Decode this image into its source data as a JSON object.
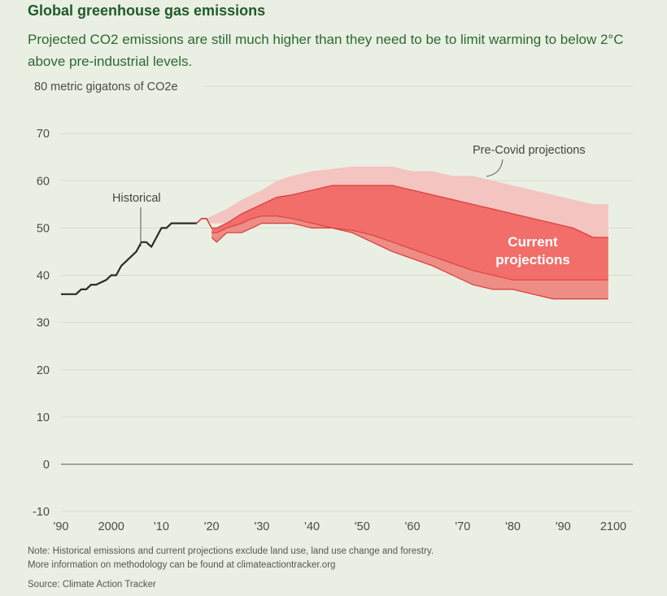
{
  "header": {
    "title": "Global greenhouse gas emissions",
    "subtitle": "Projected CO2 emissions are still much higher than they need to be to limit warming to below 2°C above pre-industrial levels."
  },
  "footer": {
    "note_line1": "Note: Historical emissions and current projections exclude land use, land use change and forestry.",
    "note_line2": "More information on methodology can be found at climateactiontracker.org",
    "source": "Source: Climate Action Tracker"
  },
  "colors": {
    "historical": "#2b2b2b",
    "precovid_band": "#f3c4c0",
    "current_outer_band": "#ee8c86",
    "current_inner_band": "#f26e6a",
    "band_edge": "#d83a38",
    "background": "#eaefe3"
  },
  "chart_data": {
    "type": "area",
    "ylabel": "80 metric gigatons of CO2e",
    "ylim": [
      -10,
      80
    ],
    "xlim": [
      1990,
      2100
    ],
    "y_ticks": [
      -10,
      0,
      10,
      20,
      30,
      40,
      50,
      60,
      70,
      80
    ],
    "y_tick_labels": [
      "-10",
      "0",
      "10",
      "20",
      "30",
      "40",
      "50",
      "60",
      "70",
      "80 metric gigatons of CO2e"
    ],
    "x_ticks": [
      1990,
      2000,
      2010,
      2020,
      2030,
      2040,
      2050,
      2060,
      2070,
      2080,
      2090,
      2100
    ],
    "x_tick_labels": [
      "'90",
      "2000",
      "'10",
      "'20",
      "'30",
      "'40",
      "'50",
      "'60",
      "'70",
      "'80",
      "'90",
      "2100"
    ],
    "grid": true,
    "annotations": {
      "historical": "Historical",
      "precovid": "Pre-Covid projections",
      "current_line1": "Current",
      "current_line2": "projections"
    },
    "historical": {
      "x": [
        1990,
        1993,
        1994,
        1995,
        1996,
        1997,
        1999,
        2000,
        2001,
        2002,
        2004,
        2005,
        2006,
        2007,
        2008,
        2009,
        2010,
        2011,
        2012,
        2013,
        2014,
        2015,
        2016,
        2017
      ],
      "y": [
        36,
        36,
        37,
        37,
        38,
        38,
        39,
        40,
        40,
        42,
        44,
        45,
        47,
        47,
        46,
        48,
        50,
        50,
        51,
        51,
        51,
        51,
        51,
        51
      ]
    },
    "recent_line": {
      "x": [
        2017,
        2018,
        2019,
        2020
      ],
      "y": [
        51,
        52,
        52,
        50
      ]
    },
    "precovid_projections": {
      "x": [
        2019,
        2020,
        2023,
        2026,
        2028,
        2030,
        2033,
        2036,
        2040,
        2044,
        2048,
        2052,
        2056,
        2060,
        2064,
        2068,
        2072,
        2076,
        2080,
        2084,
        2088,
        2092,
        2096,
        2099
      ],
      "high": [
        52,
        52.5,
        54,
        56,
        57,
        58,
        60,
        61,
        62,
        62.5,
        63,
        63,
        63,
        62,
        62,
        61,
        61,
        60,
        59,
        58,
        57,
        56,
        55,
        55
      ],
      "low": [
        52,
        51,
        51,
        52,
        53,
        54,
        54,
        54,
        53,
        53,
        52,
        51,
        50,
        48,
        46,
        44,
        42,
        41,
        40,
        39,
        39,
        39,
        39,
        39
      ]
    },
    "current_projections_upper_band": {
      "x": [
        2020,
        2021,
        2023,
        2026,
        2028,
        2030,
        2033,
        2036,
        2040,
        2044,
        2048,
        2052,
        2056,
        2060,
        2064,
        2068,
        2072,
        2076,
        2080,
        2084,
        2088,
        2092,
        2096,
        2099
      ],
      "high": [
        50,
        50,
        51,
        53,
        54,
        55,
        56.5,
        57,
        58,
        59,
        59,
        59,
        59,
        58,
        57,
        56,
        55,
        54,
        53,
        52,
        51,
        50,
        48,
        48
      ],
      "low": [
        49,
        49,
        50,
        51,
        52,
        52.5,
        52.5,
        52,
        51,
        50,
        49.5,
        48.5,
        47,
        45.5,
        44,
        42.5,
        41,
        40,
        39,
        39,
        39,
        39,
        39,
        39
      ]
    },
    "current_projections_lower_band": {
      "x": [
        2020,
        2021,
        2023,
        2026,
        2028,
        2030,
        2033,
        2036,
        2040,
        2044,
        2048,
        2052,
        2056,
        2060,
        2064,
        2068,
        2072,
        2076,
        2080,
        2084,
        2088,
        2092,
        2096,
        2099
      ],
      "high": [
        49,
        49,
        50,
        51,
        52,
        52.5,
        52.5,
        52,
        51,
        50,
        49.5,
        48.5,
        47,
        45.5,
        44,
        42.5,
        41,
        40,
        39,
        39,
        39,
        39,
        39,
        39
      ],
      "low": [
        48,
        47,
        49,
        49,
        50,
        51,
        51,
        51,
        50,
        50,
        49,
        47,
        45,
        43.5,
        42,
        40,
        38,
        37,
        37,
        36,
        35,
        35,
        35,
        35
      ]
    }
  }
}
